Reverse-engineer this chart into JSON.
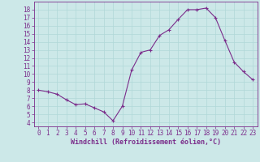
{
  "x": [
    0,
    1,
    2,
    3,
    4,
    5,
    6,
    7,
    8,
    9,
    10,
    11,
    12,
    13,
    14,
    15,
    16,
    17,
    18,
    19,
    20,
    21,
    22,
    23
  ],
  "y": [
    8.0,
    7.8,
    7.5,
    6.8,
    6.2,
    6.3,
    5.8,
    5.3,
    4.2,
    6.0,
    10.5,
    12.7,
    13.0,
    14.8,
    15.5,
    16.8,
    18.0,
    18.0,
    18.2,
    17.0,
    14.2,
    11.5,
    10.3,
    9.3
  ],
  "line_color": "#7b2d8b",
  "marker": "+",
  "marker_size": 3,
  "bg_color": "#cce8e8",
  "grid_color": "#b0d8d8",
  "xlabel": "Windchill (Refroidissement éolien,°C)",
  "xlabel_color": "#7b2d8b",
  "tick_color": "#7b2d8b",
  "ylim": [
    3.5,
    19.0
  ],
  "xlim": [
    -0.5,
    23.5
  ],
  "yticks": [
    4,
    5,
    6,
    7,
    8,
    9,
    10,
    11,
    12,
    13,
    14,
    15,
    16,
    17,
    18
  ],
  "xticks": [
    0,
    1,
    2,
    3,
    4,
    5,
    6,
    7,
    8,
    9,
    10,
    11,
    12,
    13,
    14,
    15,
    16,
    17,
    18,
    19,
    20,
    21,
    22,
    23
  ],
  "tick_fontsize": 5.5,
  "xlabel_fontsize": 6.0
}
